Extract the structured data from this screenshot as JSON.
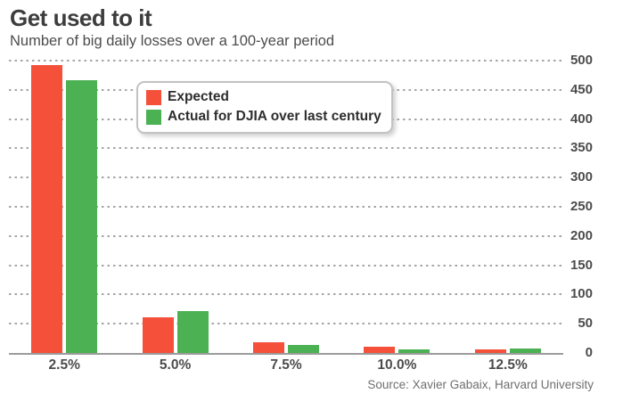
{
  "header": {
    "title": "Get used to it",
    "subtitle": "Number of big daily losses over a 100-year period"
  },
  "legend": {
    "items": [
      {
        "label": "Expected",
        "color": "#f4503a"
      },
      {
        "label": "Actual for DJIA over last century",
        "color": "#4bb153"
      }
    ]
  },
  "source": "Source: Xavier Gabaix, Harvard University",
  "colors": {
    "expected": "#f4503a",
    "actual": "#4bb153",
    "gridline": "#a5a5a5",
    "axis_line": "#9b9b9b",
    "text_dark": "#3d3d3d",
    "text_gray": "#4c4c4c"
  },
  "chart_data": {
    "type": "bar",
    "title": "Get used to it",
    "subtitle": "Number of big daily losses over a 100-year period",
    "categories": [
      "2.5%",
      "5.0%",
      "7.5%",
      "10.0%",
      "12.5%"
    ],
    "series": [
      {
        "name": "Expected",
        "color": "#f4503a",
        "values": [
          492,
          61,
          18,
          10,
          6
        ]
      },
      {
        "name": "Actual for DJIA over last century",
        "color": "#4bb153",
        "values": [
          467,
          72,
          14,
          6,
          7
        ]
      }
    ],
    "xlabel": "",
    "ylabel": "",
    "ylim": [
      0,
      500
    ],
    "yticks": [
      0,
      50,
      100,
      150,
      200,
      250,
      300,
      350,
      400,
      450,
      500
    ],
    "yaxis_side": "right",
    "grid": "dashed-horizontal",
    "legend_position": "inside-top-left",
    "source": "Source: Xavier Gabaix, Harvard University"
  }
}
